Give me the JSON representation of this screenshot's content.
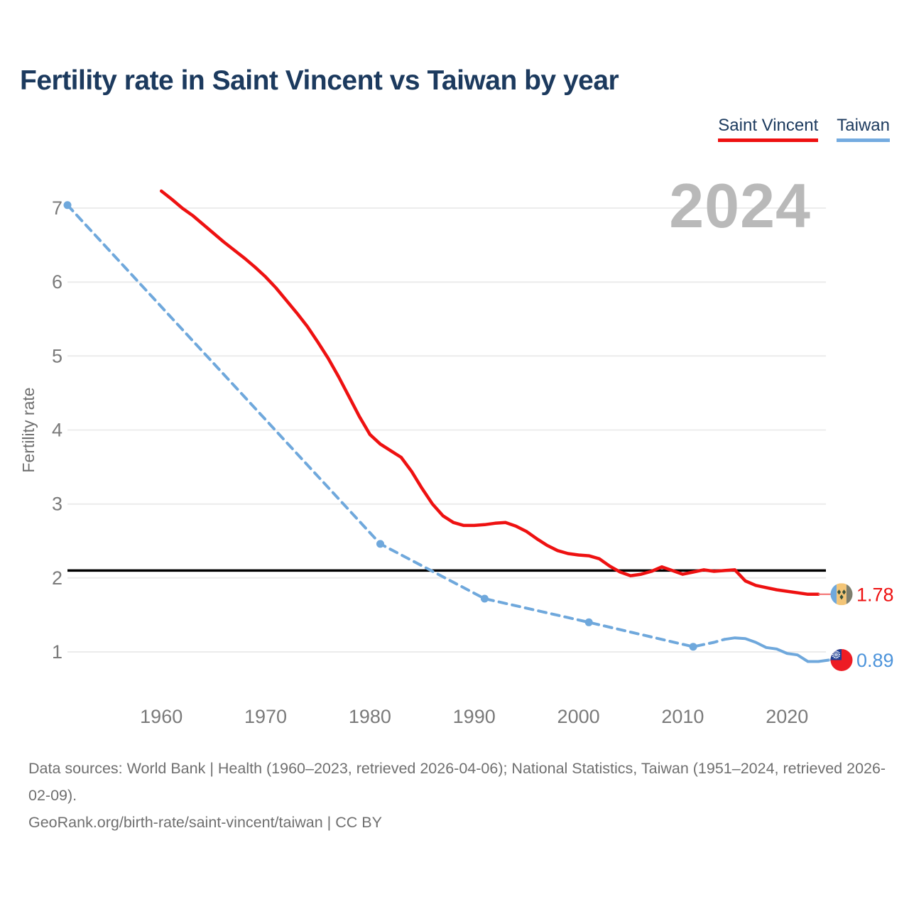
{
  "title": "Fertility rate in Saint Vincent vs Taiwan by year",
  "watermark": "2024",
  "legend": [
    {
      "label": "Saint Vincent",
      "color": "#ee1111"
    },
    {
      "label": "Taiwan",
      "color": "#74abe0"
    }
  ],
  "footer": {
    "sources": "Data sources: World Bank | Health (1960–2023, retrieved 2026-04-06); National Statistics, Taiwan (1951–2024, retrieved 2026-02-09).",
    "link": "GeoRank.org/birth-rate/saint-vincent/taiwan | CC BY"
  },
  "chart_data": {
    "type": "line",
    "title": "Fertility rate in Saint Vincent vs Taiwan by year",
    "xlabel": "",
    "ylabel": "Fertility rate",
    "xlim": [
      1951,
      2024
    ],
    "ylim": [
      0.6,
      7.4
    ],
    "x_ticks": [
      1960,
      1970,
      1980,
      1990,
      2000,
      2010,
      2020
    ],
    "y_ticks": [
      1,
      2,
      3,
      4,
      5,
      6,
      7
    ],
    "grid": "horizontal",
    "legend_position": "top-right",
    "reference_line": {
      "value": 2.1,
      "color": "#000000"
    },
    "series": [
      {
        "id": "saint-vincent",
        "name": "Saint Vincent",
        "color": "#ee1111",
        "style": "solid",
        "width": 4.5,
        "points": [
          [
            1960,
            7.23
          ],
          [
            1961,
            7.12
          ],
          [
            1962,
            7.0
          ],
          [
            1963,
            6.9
          ],
          [
            1964,
            6.78
          ],
          [
            1965,
            6.66
          ],
          [
            1966,
            6.54
          ],
          [
            1967,
            6.43
          ],
          [
            1968,
            6.32
          ],
          [
            1969,
            6.2
          ],
          [
            1970,
            6.07
          ],
          [
            1971,
            5.92
          ],
          [
            1972,
            5.75
          ],
          [
            1973,
            5.58
          ],
          [
            1974,
            5.4
          ],
          [
            1975,
            5.19
          ],
          [
            1976,
            4.97
          ],
          [
            1977,
            4.72
          ],
          [
            1978,
            4.45
          ],
          [
            1979,
            4.18
          ],
          [
            1980,
            3.94
          ],
          [
            1981,
            3.81
          ],
          [
            1982,
            3.72
          ],
          [
            1983,
            3.63
          ],
          [
            1984,
            3.44
          ],
          [
            1985,
            3.21
          ],
          [
            1986,
            3.0
          ],
          [
            1987,
            2.84
          ],
          [
            1988,
            2.75
          ],
          [
            1989,
            2.71
          ],
          [
            1990,
            2.71
          ],
          [
            1991,
            2.72
          ],
          [
            1992,
            2.74
          ],
          [
            1993,
            2.75
          ],
          [
            1994,
            2.7
          ],
          [
            1995,
            2.63
          ],
          [
            1996,
            2.53
          ],
          [
            1997,
            2.44
          ],
          [
            1998,
            2.37
          ],
          [
            1999,
            2.33
          ],
          [
            2000,
            2.31
          ],
          [
            2001,
            2.3
          ],
          [
            2002,
            2.26
          ],
          [
            2003,
            2.16
          ],
          [
            2004,
            2.08
          ],
          [
            2005,
            2.03
          ],
          [
            2006,
            2.05
          ],
          [
            2007,
            2.09
          ],
          [
            2008,
            2.15
          ],
          [
            2009,
            2.1
          ],
          [
            2010,
            2.05
          ],
          [
            2011,
            2.08
          ],
          [
            2012,
            2.11
          ],
          [
            2013,
            2.09
          ],
          [
            2014,
            2.1
          ],
          [
            2015,
            2.11
          ],
          [
            2016,
            1.96
          ],
          [
            2017,
            1.9
          ],
          [
            2018,
            1.87
          ],
          [
            2019,
            1.84
          ],
          [
            2020,
            1.82
          ],
          [
            2021,
            1.8
          ],
          [
            2022,
            1.78
          ],
          [
            2023,
            1.78
          ]
        ]
      },
      {
        "id": "taiwan-interpolated",
        "name": "Taiwan",
        "color": "#6fa8dc",
        "style": "dashed",
        "width": 4,
        "points": [
          [
            1951,
            7.04
          ],
          [
            1981,
            2.46
          ],
          [
            1991,
            1.72
          ],
          [
            2001,
            1.4
          ],
          [
            2011,
            1.07
          ],
          [
            2012,
            1.1
          ],
          [
            2013,
            1.13
          ],
          [
            2014,
            1.17
          ]
        ],
        "marker_points": [
          [
            1951,
            7.04
          ],
          [
            1981,
            2.46
          ],
          [
            1991,
            1.72
          ],
          [
            2001,
            1.4
          ],
          [
            2011,
            1.07
          ]
        ]
      },
      {
        "id": "taiwan-annual",
        "name": "Taiwan",
        "color": "#6fa8dc",
        "style": "solid",
        "width": 4,
        "points": [
          [
            2014,
            1.17
          ],
          [
            2015,
            1.19
          ],
          [
            2016,
            1.18
          ],
          [
            2017,
            1.13
          ],
          [
            2018,
            1.06
          ],
          [
            2019,
            1.04
          ],
          [
            2020,
            0.98
          ],
          [
            2021,
            0.96
          ],
          [
            2022,
            0.87
          ],
          [
            2023,
            0.87
          ],
          [
            2024,
            0.89
          ]
        ]
      }
    ],
    "end_labels": [
      {
        "series": "Saint Vincent",
        "flag": "saint-vincent",
        "value": "1.78",
        "value_num": 1.78,
        "color": "#ee1111",
        "line_color": "#f46a6a",
        "line_end": [
          2023,
          1.78
        ]
      },
      {
        "series": "Taiwan",
        "flag": "taiwan",
        "value": "0.89",
        "value_num": 0.89,
        "color": "#4d94db",
        "line_color": "#9cc3e8",
        "line_end": [
          2024,
          0.89
        ]
      }
    ]
  }
}
